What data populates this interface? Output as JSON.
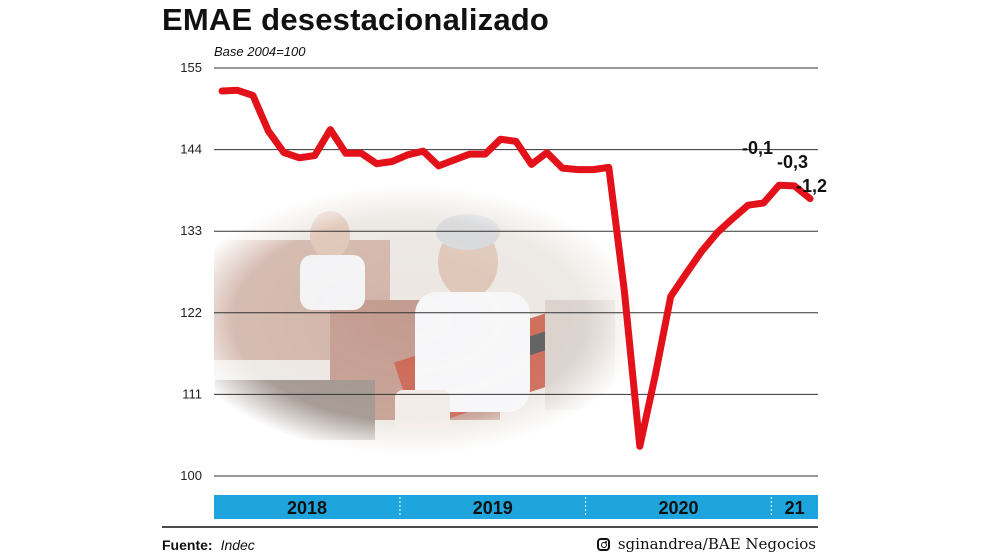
{
  "title": "EMAE desestacionalizado",
  "subtitle": "Base 2004=100",
  "source": {
    "label": "Fuente:",
    "value": "Indec"
  },
  "credit": {
    "handle": "sginandrea/BAE Negocios",
    "icon": "instagram-icon"
  },
  "colors": {
    "line": "#e3121a",
    "band": "#1ea5de",
    "grid": "#333333"
  },
  "chart_data": {
    "type": "line",
    "ylim": [
      100,
      155
    ],
    "yticks": [
      155,
      144,
      133,
      122,
      111,
      100
    ],
    "years": [
      "2018",
      "2019",
      "2020",
      "21"
    ],
    "x": [
      "2018-01",
      "2018-02",
      "2018-03",
      "2018-04",
      "2018-05",
      "2018-06",
      "2018-07",
      "2018-08",
      "2018-09",
      "2018-10",
      "2018-11",
      "2018-12",
      "2019-01",
      "2019-02",
      "2019-03",
      "2019-04",
      "2019-05",
      "2019-06",
      "2019-07",
      "2019-08",
      "2019-09",
      "2019-10",
      "2019-11",
      "2019-12",
      "2020-01",
      "2020-02",
      "2020-03",
      "2020-04",
      "2020-05",
      "2020-06",
      "2020-07",
      "2020-08",
      "2020-09",
      "2020-10",
      "2020-11",
      "2020-12",
      "2021-01",
      "2021-02",
      "2021-03"
    ],
    "series": [
      {
        "values": [
          151.9,
          152.0,
          151.3,
          146.5,
          143.6,
          142.9,
          143.2,
          146.7,
          143.5,
          143.5,
          142.1,
          142.4,
          143.3,
          143.8,
          141.8,
          142.6,
          143.4,
          143.4,
          145.4,
          145.1,
          142.0,
          143.6,
          141.5,
          141.3,
          141.3,
          141.6,
          125.0,
          104.0,
          113.6,
          124.2,
          127.3,
          130.3,
          132.8,
          134.7,
          136.5,
          136.8,
          139.2,
          139.1,
          137.4
        ]
      }
    ],
    "annotations": [
      "-0,1",
      "-0,3",
      "-1,2"
    ]
  }
}
